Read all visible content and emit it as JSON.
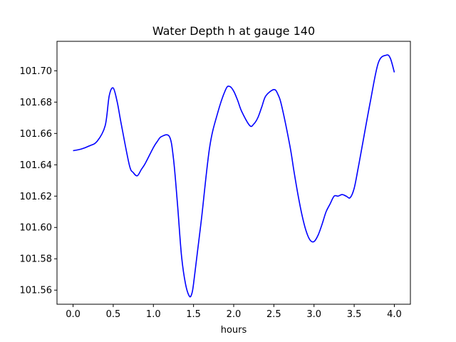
{
  "chart_data": {
    "type": "line",
    "title": "Water Depth h at gauge 140",
    "xlabel": "hours",
    "ylabel": "",
    "xlim": [
      -0.2,
      4.2
    ],
    "ylim": [
      101.551,
      101.7188
    ],
    "x_ticks": [
      0.0,
      0.5,
      1.0,
      1.5,
      2.0,
      2.5,
      3.0,
      3.5,
      4.0
    ],
    "x_tick_labels": [
      "0.0",
      "0.5",
      "1.0",
      "1.5",
      "2.0",
      "2.5",
      "3.0",
      "3.5",
      "4.0"
    ],
    "y_ticks": [
      101.56,
      101.58,
      101.6,
      101.62,
      101.64,
      101.66,
      101.68,
      101.7
    ],
    "y_tick_labels": [
      "101.56",
      "101.58",
      "101.60",
      "101.62",
      "101.64",
      "101.66",
      "101.68",
      "101.70"
    ],
    "grid": false,
    "series": [
      {
        "color": "#0000ff",
        "x": [
          0.0,
          0.1,
          0.2,
          0.3,
          0.4,
          0.45,
          0.5,
          0.55,
          0.6,
          0.7,
          0.75,
          0.8,
          0.85,
          0.9,
          1.0,
          1.05,
          1.1,
          1.2,
          1.25,
          1.3,
          1.35,
          1.4,
          1.45,
          1.48,
          1.5,
          1.55,
          1.6,
          1.7,
          1.8,
          1.9,
          1.95,
          2.0,
          2.05,
          2.1,
          2.2,
          2.25,
          2.3,
          2.35,
          2.4,
          2.5,
          2.55,
          2.6,
          2.7,
          2.75,
          2.8,
          2.85,
          2.9,
          2.95,
          3.0,
          3.05,
          3.1,
          3.15,
          3.2,
          3.25,
          3.3,
          3.35,
          3.4,
          3.45,
          3.5,
          3.55,
          3.6,
          3.7,
          3.8,
          3.9,
          3.95,
          4.0
        ],
        "values": [
          101.649,
          101.65,
          101.652,
          101.655,
          101.665,
          101.684,
          101.689,
          101.68,
          101.666,
          101.64,
          101.635,
          101.633,
          101.637,
          101.641,
          101.651,
          101.655,
          101.658,
          101.658,
          101.644,
          101.615,
          101.582,
          101.564,
          101.556,
          101.558,
          101.564,
          101.585,
          101.606,
          101.651,
          101.673,
          101.688,
          101.69,
          101.687,
          101.681,
          101.674,
          101.665,
          101.666,
          101.67,
          101.677,
          101.684,
          101.688,
          101.685,
          101.677,
          101.652,
          101.636,
          101.621,
          101.608,
          101.598,
          101.592,
          101.591,
          101.595,
          101.602,
          101.61,
          101.615,
          101.62,
          101.62,
          101.621,
          101.62,
          101.619,
          101.625,
          101.638,
          101.652,
          101.68,
          101.705,
          101.71,
          101.708,
          101.699
        ]
      }
    ]
  }
}
